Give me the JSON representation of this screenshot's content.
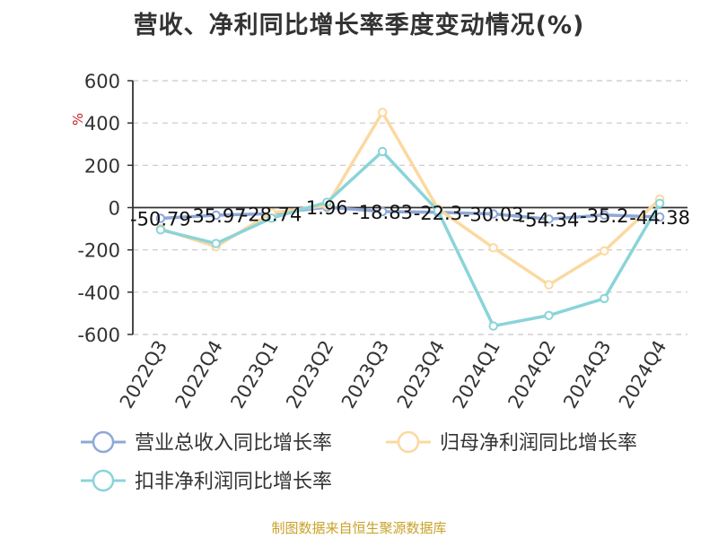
{
  "chart_data": {
    "type": "line",
    "title": "营收、净利同比增长率季度变动情况(%)",
    "ylabel": "%",
    "xlabel": "",
    "ylim": [
      -600,
      600
    ],
    "yticks": [
      600,
      400,
      200,
      0,
      -200,
      -400,
      -600
    ],
    "categories": [
      "2022Q3",
      "2022Q4",
      "2023Q1",
      "2023Q2",
      "2023Q3",
      "2023Q4",
      "2024Q1",
      "2024Q2",
      "2024Q3",
      "2024Q4"
    ],
    "grid": true,
    "legend_position": "bottom",
    "series": [
      {
        "name": "营业总收入同比增长率",
        "color": "#8fa8d8",
        "values": [
          -50.79,
          -35.97,
          -28.74,
          1.96,
          -18.83,
          -22.3,
          -30.03,
          -54.34,
          -35.2,
          -44.38
        ],
        "data_labels": [
          "-50.79",
          "-35.97",
          "-28.74",
          "1.96",
          "-18.83",
          "-22.3",
          "-30.03",
          "-54.34",
          "-35.2",
          "-44.38"
        ]
      },
      {
        "name": "归母净利润同比增长率",
        "color": "#fbd9a0",
        "values": [
          -100,
          -185,
          -25,
          10,
          450,
          -5,
          -190,
          -365,
          -205,
          40
        ]
      },
      {
        "name": "扣非净利润同比增长率",
        "color": "#8ad4d9",
        "values": [
          -105,
          -170,
          -50,
          25,
          265,
          -15,
          -560,
          -510,
          -430,
          20
        ]
      }
    ]
  },
  "source": "制图数据来自恒生聚源数据库"
}
